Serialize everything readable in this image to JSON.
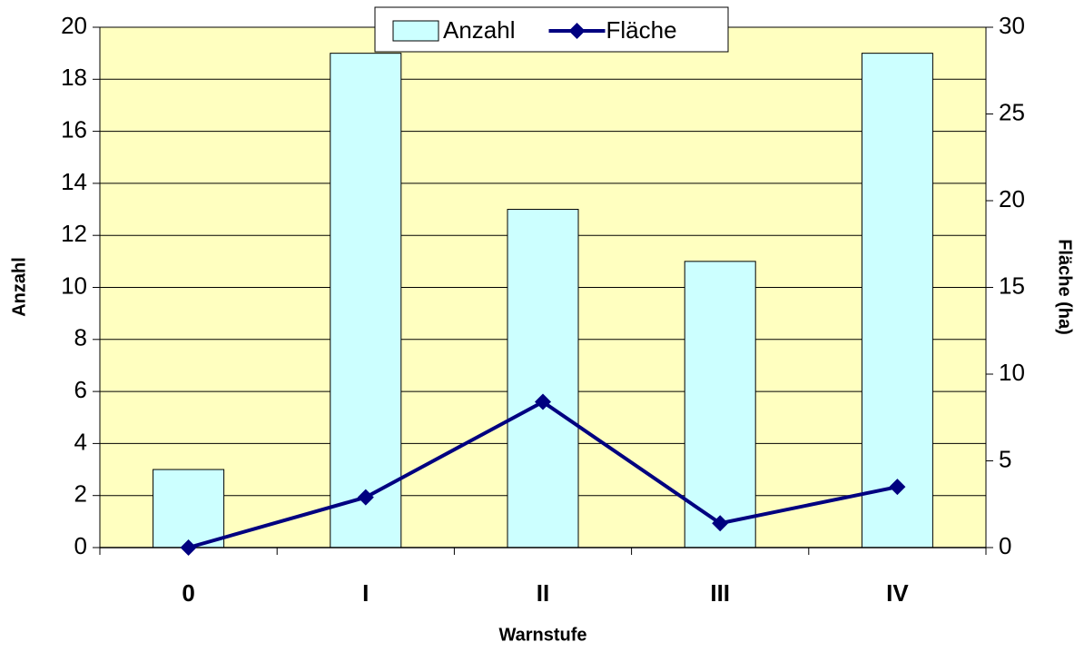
{
  "chart_data": {
    "type": "bar_line",
    "categories": [
      "0",
      "I",
      "II",
      "III",
      "IV"
    ],
    "series": [
      {
        "name": "Anzahl",
        "type": "bar",
        "color": "#ccffff",
        "values": [
          3,
          19,
          13,
          11,
          19
        ]
      },
      {
        "name": "Fläche",
        "type": "line",
        "axis": "y2",
        "color": "#000080",
        "values": [
          0,
          2.9,
          8.4,
          1.4,
          3.5
        ]
      }
    ],
    "ylabel": "Anzahl",
    "y2label": "Fläche (ha)",
    "xlabel": "Warnstufe",
    "ylim": [
      0,
      20
    ],
    "yticks": [
      0,
      2,
      4,
      6,
      8,
      10,
      12,
      14,
      16,
      18,
      20
    ],
    "y2lim": [
      0,
      30
    ],
    "y2ticks": [
      0,
      5,
      10,
      15,
      20,
      25,
      30
    ],
    "grid": true,
    "legend": "top"
  }
}
